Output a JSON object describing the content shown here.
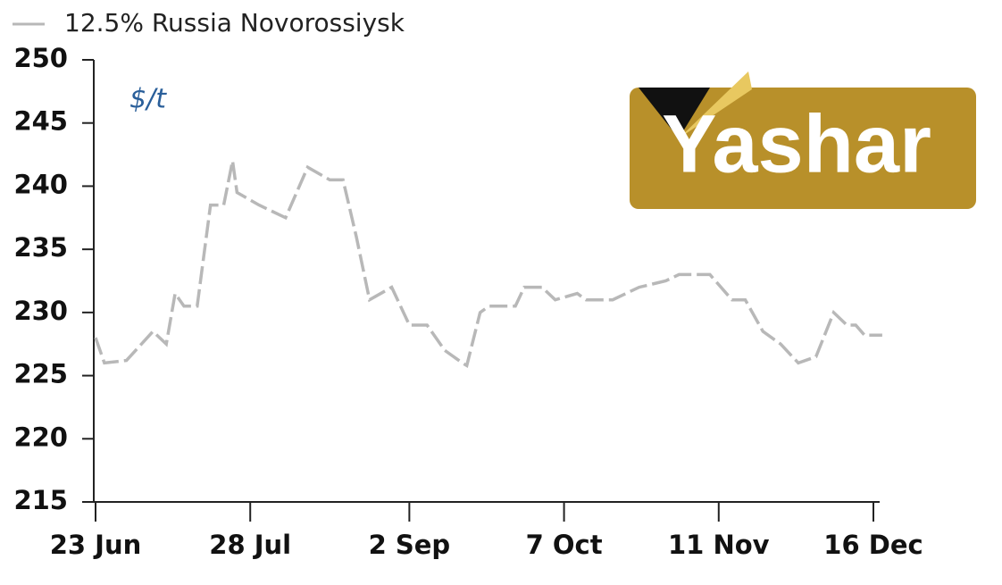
{
  "chart_data": {
    "type": "line",
    "y_label": "$/t",
    "logo_text": "Yashar",
    "x": [
      "23 Jun",
      "25 Jun",
      "30 Jun",
      "6 Jul",
      "9 Jul",
      "11 Jul",
      "13 Jul",
      "16 Jul",
      "19 Jul",
      "22 Jul",
      "24 Jul",
      "25 Jul",
      "30 Jul",
      "5 Aug",
      "10 Aug",
      "15 Aug",
      "18 Aug",
      "21 Aug",
      "24 Aug",
      "29 Aug",
      "2 Sep",
      "6 Sep",
      "10 Sep",
      "14 Sep",
      "15 Sep",
      "18 Sep",
      "20 Sep",
      "26 Sep",
      "28 Sep",
      "2 Oct",
      "5 Oct",
      "10 Oct",
      "12 Oct",
      "18 Oct",
      "24 Oct",
      "30 Oct",
      "2 Nov",
      "9 Nov",
      "14 Nov",
      "17 Nov",
      "21 Nov",
      "25 Nov",
      "29 Nov",
      "3 Dec",
      "7 Dec",
      "10 Dec",
      "12 Dec",
      "14 Dec",
      "18 Dec"
    ],
    "series": [
      {
        "name": "12.5% Russia Novorossiysk",
        "color": "#b8b8b8",
        "values": [
          228,
          226,
          226.2,
          228.5,
          227.5,
          231.5,
          230.5,
          230.5,
          238.5,
          238.5,
          242,
          239.5,
          238.5,
          237.5,
          241.5,
          240.5,
          240.5,
          236,
          231,
          232,
          229,
          229,
          227,
          226,
          225.8,
          230,
          230.5,
          230.5,
          232,
          232,
          231,
          231.5,
          231,
          231,
          232,
          232.5,
          233,
          233,
          231,
          231,
          228.5,
          227.5,
          226,
          226.5,
          230,
          229,
          229,
          228.2,
          228.2
        ]
      }
    ],
    "xticks": [
      "23 Jun",
      "28 Jul",
      "2 Sep",
      "7 Oct",
      "11 Nov",
      "16 Dec"
    ],
    "ylim": [
      215,
      250
    ],
    "yticks": [
      215,
      220,
      225,
      230,
      235,
      240,
      245,
      250
    ],
    "legend": "top-left"
  }
}
